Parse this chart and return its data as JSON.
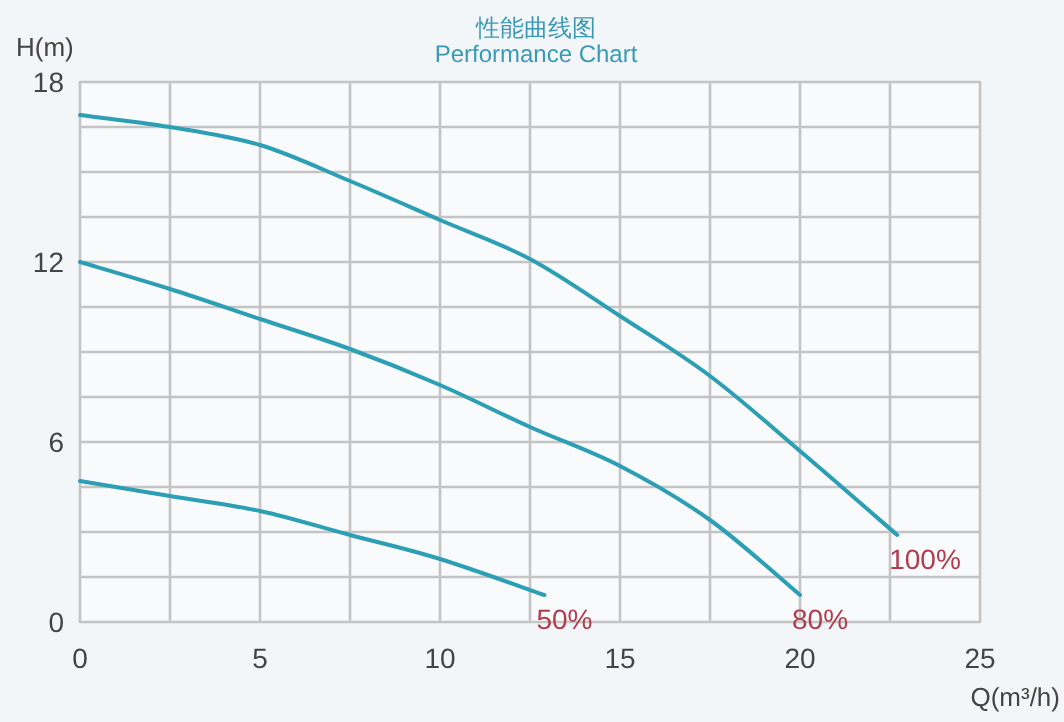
{
  "chart_data": {
    "type": "line",
    "title": "性能曲线图",
    "subtitle": "Performance Chart",
    "xlabel": "Q(m³/h)",
    "ylabel": "H(m)",
    "xlim": [
      0,
      25
    ],
    "ylim": [
      0,
      18
    ],
    "xticks": [
      0,
      {
        "value": 2.5,
        "label": null
      },
      5,
      {
        "value": 7.5,
        "label": null
      },
      10,
      {
        "value": 12.5,
        "label": null
      },
      15,
      {
        "value": 17.5,
        "label": null
      },
      20,
      {
        "value": 22.5,
        "label": null
      },
      25
    ],
    "yticks": [
      0,
      {
        "value": 1.5,
        "label": null
      },
      {
        "value": 3,
        "label": null
      },
      {
        "value": 4.5,
        "label": null
      },
      6,
      {
        "value": 7.5,
        "label": null
      },
      {
        "value": 9,
        "label": null
      },
      {
        "value": 10.5,
        "label": null
      },
      12,
      {
        "value": 13.5,
        "label": null
      },
      {
        "value": 15,
        "label": null
      },
      {
        "value": 16.5,
        "label": null
      },
      18
    ],
    "grid": true,
    "legend": false,
    "marker": "none",
    "line_style": "solid",
    "series": [
      {
        "name": "100%",
        "color": "#2c9fb4",
        "x": [
          0,
          2.5,
          5,
          7.5,
          10,
          12.5,
          15,
          17.5,
          20,
          22.7
        ],
        "values": [
          16.9,
          16.5,
          15.9,
          14.7,
          13.4,
          12.1,
          10.2,
          8.2,
          5.7,
          2.9
        ]
      },
      {
        "name": "80%",
        "color": "#2c9fb4",
        "x": [
          0,
          2.5,
          5,
          7.5,
          10,
          12.5,
          15,
          17.5,
          20
        ],
        "values": [
          12,
          11.1,
          10.1,
          9.1,
          7.9,
          6.5,
          5.2,
          3.4,
          0.9
        ]
      },
      {
        "name": "50%",
        "color": "#2c9fb4",
        "x": [
          0,
          2.5,
          5,
          7.5,
          10,
          12.9
        ],
        "values": [
          4.7,
          4.2,
          3.7,
          2.9,
          2.1,
          0.9
        ]
      }
    ]
  }
}
